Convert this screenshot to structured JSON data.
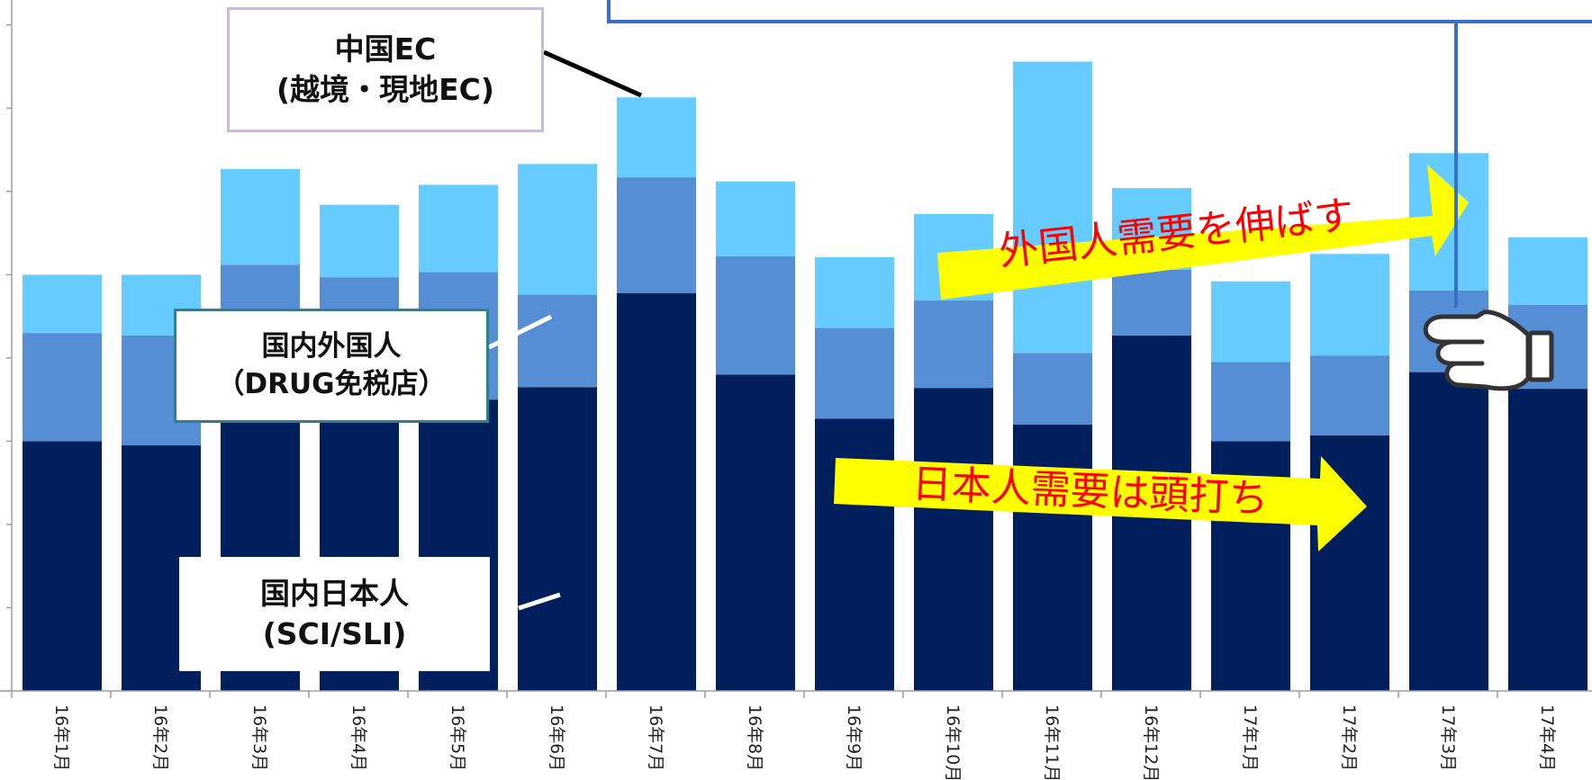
{
  "chart_data": {
    "type": "bar",
    "stacked": true,
    "categories": [
      "16年1月",
      "16年2月",
      "16年3月",
      "16年4月",
      "16年5月",
      "16年6月",
      "16年7月",
      "16年8月",
      "16年9月",
      "16年10月",
      "16年11月",
      "16年12月",
      "17年1月",
      "17年2月",
      "17年3月",
      "17年4月"
    ],
    "series": [
      {
        "name": "国内日本人(SCI/SLI)",
        "color": "#001f5c",
        "values": [
          3.0,
          2.95,
          3.3,
          3.3,
          3.5,
          3.65,
          4.78,
          3.8,
          3.27,
          3.64,
          3.2,
          4.27,
          3.0,
          3.07,
          3.83,
          3.63
        ]
      },
      {
        "name": "国内外国人(DRUG免税店)",
        "color": "#558ed5",
        "values": [
          1.3,
          1.32,
          1.82,
          1.67,
          1.53,
          1.11,
          1.39,
          1.42,
          1.09,
          1.05,
          0.86,
          0.79,
          0.95,
          0.96,
          0.98,
          1.01
        ]
      },
      {
        "name": "中国EC(越境・現地EC)",
        "color": "#66ccff",
        "values": [
          0.7,
          0.73,
          1.15,
          0.87,
          1.05,
          1.57,
          0.96,
          0.9,
          0.85,
          1.04,
          3.5,
          0.98,
          0.97,
          1.22,
          1.65,
          0.81
        ]
      }
    ],
    "ylim": [
      0,
      8.3
    ],
    "grid": false,
    "legend": "callouts"
  },
  "callouts": {
    "ec": {
      "line1": "中国EC",
      "line2": "(越境・現地EC)"
    },
    "foreign": {
      "line1": "国内外国人",
      "line2": "（DRUG免税店）"
    },
    "japanese": {
      "line1": "国内日本人",
      "line2": "(SCI/SLI)"
    }
  },
  "arrows": {
    "foreign_demand": "外国人需要を伸ばす",
    "japanese_demand": "日本人需要は頭打ち"
  },
  "colors": {
    "arrow_fill": "#ffff00",
    "arrow_text": "#ff0000",
    "axis": "#9e9e9e",
    "leader_dark": "#000000",
    "leader_light": "#ffffff",
    "pointer_line": "#3a6fc9"
  },
  "icons": {
    "pointer": "pointing-hand-icon"
  }
}
